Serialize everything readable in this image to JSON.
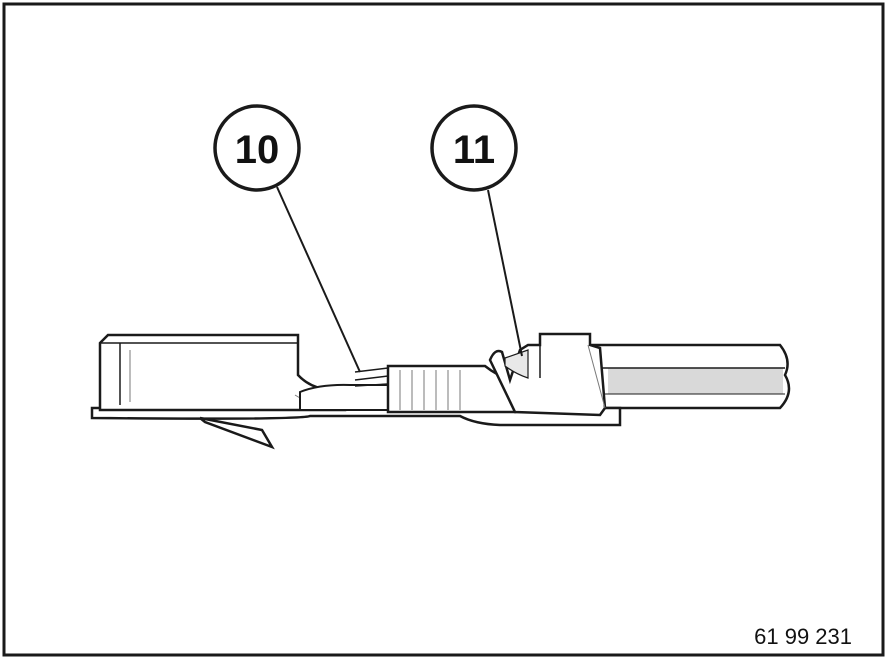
{
  "callouts": [
    {
      "label": "10"
    },
    {
      "label": "11"
    }
  ],
  "figure_number": "61 99 231",
  "colors": {
    "line": "#1a1a1a",
    "fill": "#ffffff",
    "wire_shade": "#d9d9d9",
    "background": "#ffffff"
  }
}
